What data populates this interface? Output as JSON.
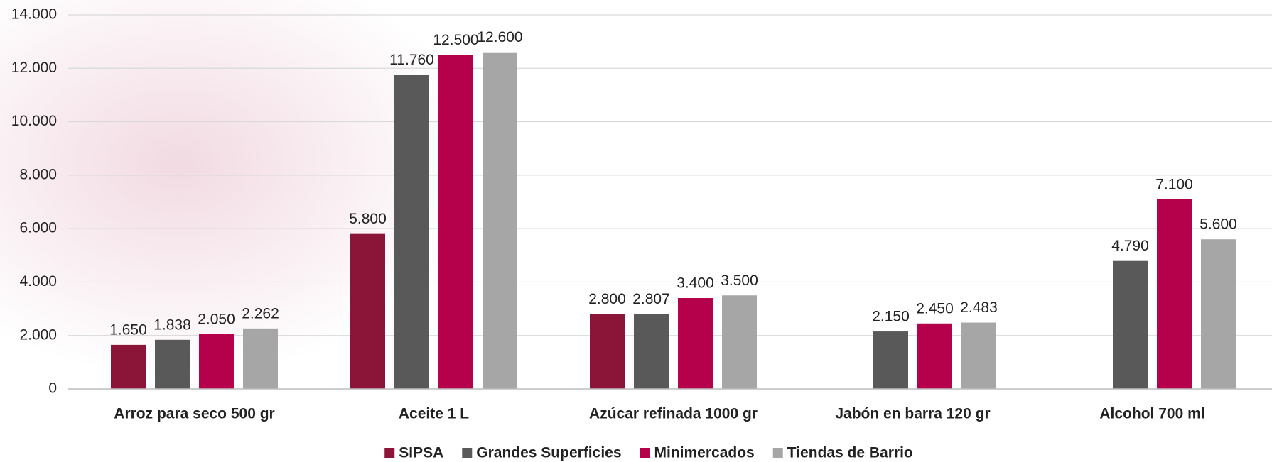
{
  "chart_data": {
    "type": "bar",
    "categories": [
      "Arroz para seco 500 gr",
      "Aceite 1 L",
      "Azúcar refinada 1000 gr",
      "Jabón en barra 120 gr",
      "Alcohol 700 ml"
    ],
    "series": [
      {
        "name": "SIPSA",
        "color": "#8b1538",
        "values": [
          1650,
          5800,
          2800,
          null,
          null
        ],
        "value_labels": [
          "1.650",
          "5.800",
          "2.800",
          null,
          null
        ]
      },
      {
        "name": "Grandes Superficies",
        "color": "#595959",
        "values": [
          1838,
          11760,
          2807,
          2150,
          4790
        ],
        "value_labels": [
          "1.838",
          "11.760",
          "2.807",
          "2.150",
          "4.790"
        ]
      },
      {
        "name": "Minimercados",
        "color": "#b5004b",
        "values": [
          2050,
          12500,
          3400,
          2450,
          7100
        ],
        "value_labels": [
          "2.050",
          "12.500",
          "3.400",
          "2.450",
          "7.100"
        ]
      },
      {
        "name": "Tiendas de Barrio",
        "color": "#a6a6a6",
        "values": [
          2262,
          12600,
          3500,
          2483,
          5600
        ],
        "value_labels": [
          "2.262",
          "12.600",
          "3.500",
          "2.483",
          "5.600"
        ]
      }
    ],
    "ylim": [
      0,
      14000
    ],
    "yticks": [
      0,
      {
        "value": 2000,
        "label": "2.000"
      },
      {
        "value": 4000,
        "label": "4.000"
      },
      {
        "value": 6000,
        "label": "6.000"
      },
      {
        "value": 8000,
        "label": "8.000"
      },
      {
        "value": 10000,
        "label": "10.000"
      },
      {
        "value": 12000,
        "label": "12.000"
      },
      {
        "value": 14000,
        "label": "14.000"
      }
    ],
    "grid": true,
    "legend": "bottom"
  }
}
